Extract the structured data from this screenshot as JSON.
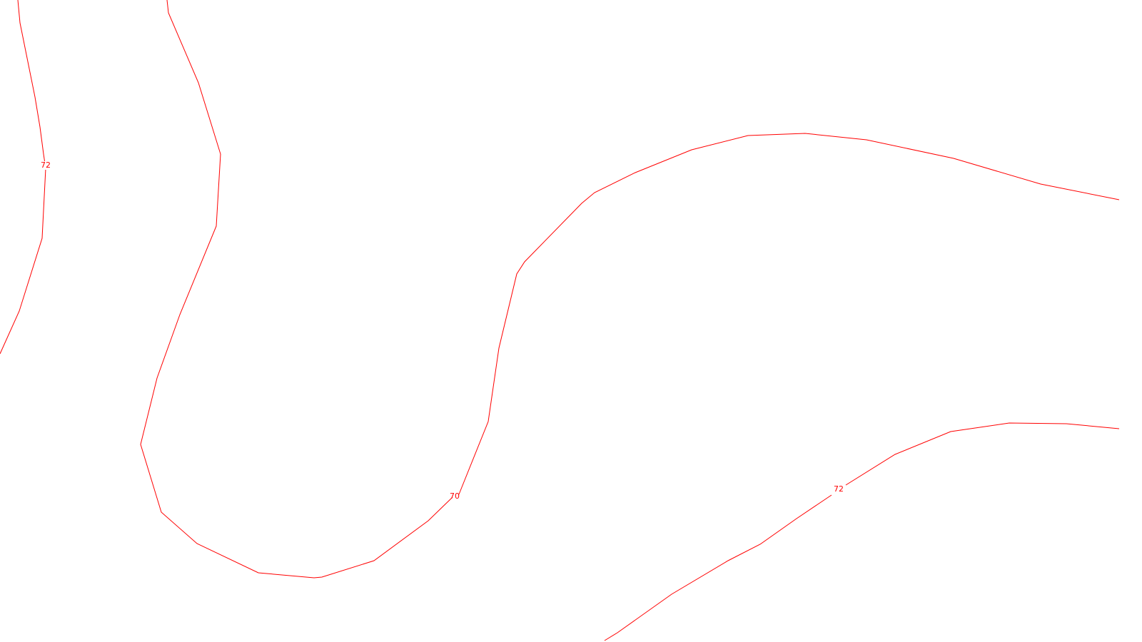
{
  "map": {
    "background_color": "#ffffff",
    "contour_color": "#ff0000",
    "contours": [
      {
        "id": "contour-72-west",
        "elevation_label": "72"
      },
      {
        "id": "contour-70-central",
        "elevation_label": "70"
      },
      {
        "id": "contour-72-southeast",
        "elevation_label": "72"
      }
    ]
  }
}
